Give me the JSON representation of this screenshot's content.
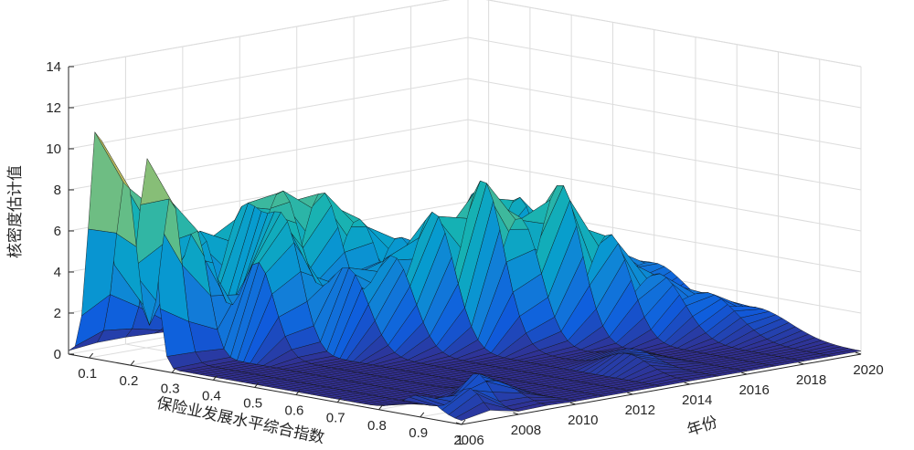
{
  "chart_data": {
    "type": "surface",
    "title": "",
    "xlabel": "保险业发展水平综合指数",
    "ylabel": "年份",
    "zlabel": "核密度估计值",
    "xlim": [
      0.05,
      1.0
    ],
    "ylim": [
      2006,
      2020
    ],
    "zlim": [
      0,
      14
    ],
    "x_ticks": [
      "0.1",
      "0.2",
      "0.3",
      "0.4",
      "0.5",
      "0.6",
      "0.7",
      "0.8",
      "0.9",
      "1"
    ],
    "y_ticks": [
      "2006",
      "2008",
      "2010",
      "2012",
      "2014",
      "2016",
      "2018",
      "2020"
    ],
    "z_ticks": [
      "0",
      "2",
      "4",
      "6",
      "8",
      "10",
      "12",
      "14"
    ],
    "colormap": "parula",
    "grid": true,
    "series": [
      {
        "year": 2006,
        "peaks": [
          {
            "x": 0.12,
            "h": 11.5,
            "w": 0.02
          },
          {
            "x": 0.18,
            "h": 5.0,
            "w": 0.02
          },
          {
            "x": 0.24,
            "h": 10.0,
            "w": 0.02
          },
          {
            "x": 0.9,
            "h": 0.9,
            "w": 0.04
          }
        ]
      },
      {
        "year": 2007,
        "peaks": [
          {
            "x": 0.12,
            "h": 8.5,
            "w": 0.025
          },
          {
            "x": 0.23,
            "h": 8.0,
            "w": 0.025
          },
          {
            "x": 0.95,
            "h": 1.2,
            "w": 0.03
          }
        ]
      },
      {
        "year": 2008,
        "peaks": [
          {
            "x": 0.13,
            "h": 6.5,
            "w": 0.03
          },
          {
            "x": 0.22,
            "h": 6.0,
            "w": 0.03
          },
          {
            "x": 0.9,
            "h": 1.5,
            "w": 0.03
          }
        ]
      },
      {
        "year": 2009,
        "peaks": [
          {
            "x": 0.16,
            "h": 5.5,
            "w": 0.04
          },
          {
            "x": 0.3,
            "h": 4.5,
            "w": 0.04
          },
          {
            "x": 0.88,
            "h": 0.8,
            "w": 0.05
          }
        ]
      },
      {
        "year": 2010,
        "peaks": [
          {
            "x": 0.2,
            "h": 6.5,
            "w": 0.05
          },
          {
            "x": 0.3,
            "h": 5.5,
            "w": 0.04
          }
        ]
      },
      {
        "year": 2011,
        "peaks": [
          {
            "x": 0.22,
            "h": 7.2,
            "w": 0.05
          },
          {
            "x": 0.38,
            "h": 4.0,
            "w": 0.05
          }
        ]
      },
      {
        "year": 2012,
        "peaks": [
          {
            "x": 0.25,
            "h": 7.0,
            "w": 0.05
          },
          {
            "x": 0.42,
            "h": 4.5,
            "w": 0.05
          }
        ]
      },
      {
        "year": 2013,
        "peaks": [
          {
            "x": 0.27,
            "h": 5.5,
            "w": 0.05
          },
          {
            "x": 0.45,
            "h": 6.5,
            "w": 0.05
          }
        ]
      },
      {
        "year": 2014,
        "peaks": [
          {
            "x": 0.3,
            "h": 4.5,
            "w": 0.05
          },
          {
            "x": 0.5,
            "h": 8.0,
            "w": 0.05
          },
          {
            "x": 0.85,
            "h": 0.8,
            "w": 0.05
          }
        ]
      },
      {
        "year": 2015,
        "peaks": [
          {
            "x": 0.32,
            "h": 4.0,
            "w": 0.05
          },
          {
            "x": 0.52,
            "h": 6.0,
            "w": 0.05
          },
          {
            "x": 0.8,
            "h": 0.6,
            "w": 0.05
          }
        ]
      },
      {
        "year": 2016,
        "peaks": [
          {
            "x": 0.35,
            "h": 6.5,
            "w": 0.05
          },
          {
            "x": 0.55,
            "h": 7.5,
            "w": 0.05
          }
        ]
      },
      {
        "year": 2017,
        "peaks": [
          {
            "x": 0.38,
            "h": 6.0,
            "w": 0.05
          },
          {
            "x": 0.6,
            "h": 5.0,
            "w": 0.05
          }
        ]
      },
      {
        "year": 2018,
        "peaks": [
          {
            "x": 0.4,
            "h": 4.5,
            "w": 0.06
          },
          {
            "x": 0.65,
            "h": 3.0,
            "w": 0.06
          }
        ]
      },
      {
        "year": 2019,
        "peaks": [
          {
            "x": 0.45,
            "h": 3.5,
            "w": 0.07
          },
          {
            "x": 0.7,
            "h": 2.0,
            "w": 0.07
          }
        ]
      },
      {
        "year": 2020,
        "peaks": [
          {
            "x": 0.5,
            "h": 2.5,
            "w": 0.08
          },
          {
            "x": 0.75,
            "h": 1.2,
            "w": 0.08
          }
        ]
      }
    ]
  }
}
